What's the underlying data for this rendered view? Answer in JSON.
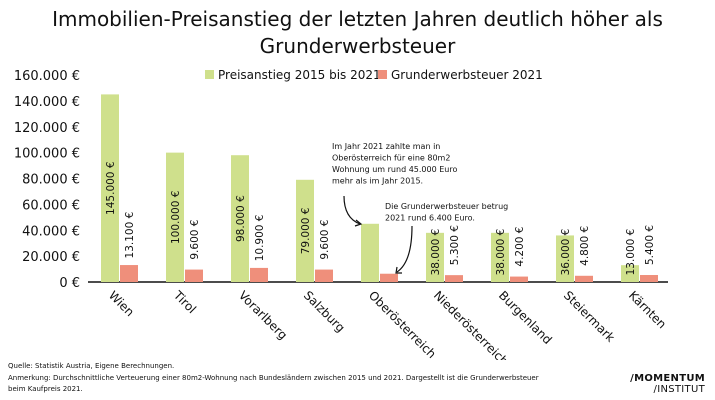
{
  "chart_data": {
    "type": "bar",
    "title": "Immobilien-Preisanstieg der letzten Jahren deutlich höher als Grunderwerbsteuer",
    "categories": [
      "Wien",
      "Tirol",
      "Vorarlberg",
      "Salzburg",
      "Oberösterreich",
      "Niederösterreich",
      "Burgenland",
      "Steiermark",
      "Kärnten"
    ],
    "series": [
      {
        "name": "Preisanstieg 2015 bis 2021",
        "color": "#cfe08c",
        "values": [
          145000,
          100000,
          98000,
          79000,
          45000,
          38000,
          38000,
          36000,
          13000
        ],
        "labels": [
          "145.000 €",
          "100.000 €",
          "98.000 €",
          "79.000 €",
          "",
          "38.000 €",
          "38.000 €",
          "36.000 €",
          "13.000 €"
        ]
      },
      {
        "name": "Grunderwerbsteuer 2021",
        "color": "#ef8f7b",
        "values": [
          13100,
          9600,
          10900,
          9600,
          6400,
          5300,
          4200,
          4800,
          5400
        ],
        "labels": [
          "13.100 €",
          "9.600 €",
          "10.900 €",
          "9.600 €",
          "",
          "5.300 €",
          "4.200 €",
          "4.800 €",
          "5.400 €"
        ]
      }
    ],
    "ylim": [
      0,
      160000
    ],
    "yticks": [
      0,
      20000,
      40000,
      60000,
      80000,
      100000,
      120000,
      140000,
      160000
    ],
    "ytick_labels": [
      "0 €",
      "20.000 €",
      "40.000 €",
      "60.000 €",
      "80.000 €",
      "100.000 €",
      "120.000 €",
      "140.000 €",
      "160.000 €"
    ],
    "grid": false,
    "legend": "top",
    "annotations": [
      {
        "text": [
          "Im Jahr 2021 zahlte man in",
          "Oberösterreich für eine 80m2",
          "Wohnung um rund 45.000 Euro",
          "mehr als im Jahr 2015."
        ]
      },
      {
        "text": [
          "Die Grunderwerbsteuer betrug",
          "2021 rund 6.400 Euro."
        ]
      }
    ]
  },
  "footer": {
    "source": "Quelle: Statistik Austria, Eigene Berechnungen.",
    "note1": "Anmerkung: Durchschnittliche Verteuerung einer 80m2-Wohnung nach Bundesländern zwischen 2015 und 2021. Dargestellt ist die Grunderwerbsteuer",
    "note2": "beim Kaufpreis 2021."
  },
  "logo": {
    "line1": "/MOMENTUM",
    "line2": "/INSTITUT"
  }
}
